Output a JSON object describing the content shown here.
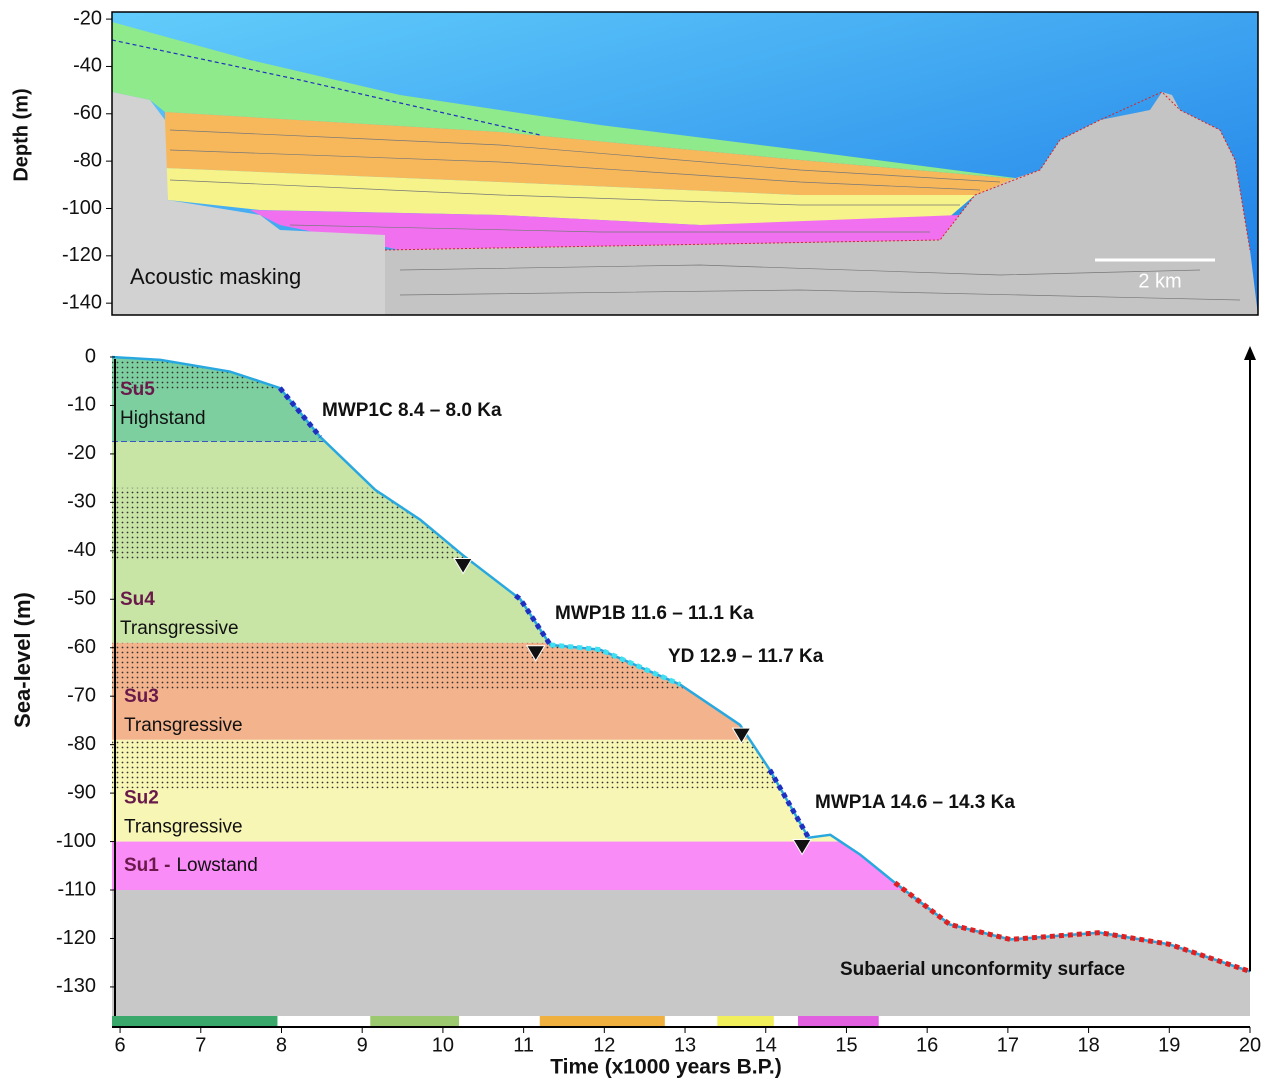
{
  "chart_data": [
    {
      "type": "section",
      "ylabel": "Depth (m)",
      "ylim": [
        -145,
        -17
      ],
      "yticks": [
        -20,
        -40,
        -60,
        -80,
        -100,
        -120,
        -140
      ],
      "annotations": [
        "Acoustic masking",
        "2 km"
      ]
    },
    {
      "type": "line",
      "xlabel": "Time (x1000 years B.P.)",
      "ylabel": "Sea-level (m)",
      "xlim": [
        5.9,
        20
      ],
      "ylim": [
        -136,
        0
      ],
      "xticks": [
        6,
        7,
        8,
        9,
        10,
        11,
        12,
        13,
        14,
        15,
        16,
        17,
        18,
        19,
        20
      ],
      "yticks": [
        0,
        -10,
        -20,
        -30,
        -40,
        -50,
        -60,
        -70,
        -80,
        -90,
        -100,
        -110,
        -120,
        -130
      ],
      "series": [
        {
          "color": "#29a8e0",
          "x": [
            5.9,
            6.5,
            7.36,
            7.98,
            8.48,
            9.16,
            9.72,
            10.24,
            10.96,
            11.33,
            11.95,
            12.94,
            13.68,
            14.05,
            14.53,
            14.8,
            15.17,
            15.6,
            16.28,
            17.03,
            18.14,
            19.0,
            20.0
          ],
          "values": [
            0,
            -0.6,
            -3,
            -6.4,
            -16.5,
            -27.4,
            -33.6,
            -40.8,
            -50,
            -59.4,
            -60.4,
            -67.6,
            -75.9,
            -85.2,
            -99.2,
            -98.6,
            -102.7,
            -108.5,
            -117.1,
            -120.2,
            -118.8,
            -121.2,
            -126.8
          ]
        }
      ],
      "units": [
        {
          "name": "Su5",
          "label": "Highstand",
          "top": 0,
          "bottom": -17.5,
          "color": "#7dcfa0",
          "dashed_bottom": true
        },
        {
          "name": "Su4",
          "label": "Transgressive",
          "top": -17.5,
          "bottom": -59,
          "color": "#c9e5a6"
        },
        {
          "name": "Su3",
          "label": "Transgressive",
          "top": -59,
          "bottom": -79,
          "color": "#f2b38d"
        },
        {
          "name": "Su2",
          "label": "Transgressive",
          "top": -79,
          "bottom": -100,
          "color": "#f8f6b4"
        },
        {
          "name": "Su1 -",
          "label": "Lowstand",
          "top": -100,
          "bottom": -110,
          "color": "#f98cf7"
        }
      ],
      "basement": {
        "top": -110,
        "color": "#c8c8c8"
      },
      "stipples": [
        {
          "top": 0,
          "bottom": -7
        },
        {
          "top": -27,
          "bottom": -42
        },
        {
          "top": -59,
          "bottom": -69
        },
        {
          "top": -79,
          "bottom": -89
        }
      ],
      "highlights": [
        {
          "start": 7.98,
          "end": 8.48,
          "color": "#1f2fc0"
        },
        {
          "start": 10.9,
          "end": 11.33,
          "color": "#1f2fc0"
        },
        {
          "start": 11.33,
          "end": 12.94,
          "color": "#40e0f0"
        },
        {
          "start": 14.05,
          "end": 14.53,
          "color": "#1f2fc0"
        },
        {
          "start": 15.6,
          "end": 20.0,
          "color": "#e02020"
        }
      ],
      "events": {
        "x": [
          10.25,
          11.15,
          13.7,
          14.45
        ],
        "values": [
          -42,
          -60,
          -77,
          -100
        ]
      },
      "time_bars": [
        {
          "start": 5.9,
          "end": 7.95,
          "color": "#3aa86a"
        },
        {
          "start": 9.1,
          "end": 10.2,
          "color": "#9cc870"
        },
        {
          "start": 11.2,
          "end": 12.75,
          "color": "#f0b040"
        },
        {
          "start": 13.4,
          "end": 14.1,
          "color": "#f2ef5c"
        },
        {
          "start": 14.4,
          "end": 15.4,
          "color": "#e060e0"
        }
      ],
      "annotations": [
        "MWP1C 8.4 – 8.0 Ka",
        "MWP1B 11.6 – 11.1 Ka",
        "YD 12.9 – 11.7 Ka",
        "MWP1A  14.6 – 14.3 Ka",
        "Subaerial unconformity surface"
      ]
    }
  ]
}
